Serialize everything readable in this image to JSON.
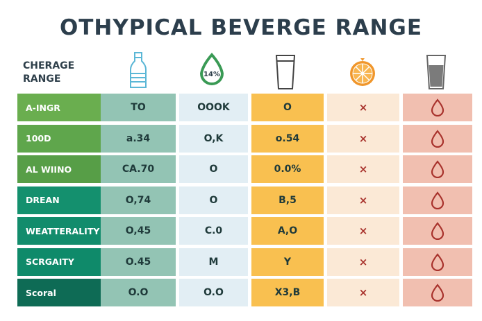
{
  "title": "OTHYPICAL BEVERGE RANGE",
  "header": {
    "label_line1": "CHERAGE",
    "label_line2": "RANGE",
    "icons": [
      "water-bottle-icon",
      "percent-drop-icon",
      "empty-glass-icon",
      "orange-slice-icon",
      "filled-glass-icon"
    ],
    "drop_text": "14%"
  },
  "rows": [
    {
      "label": "A-INGR",
      "c1": "TO",
      "c2": "OOOK",
      "c3": "O",
      "c4": "×",
      "color": "#6aae4f"
    },
    {
      "label": "100D",
      "c1": "a.34",
      "c2": "O,K",
      "c3": "o.54",
      "c4": "×",
      "color": "#5fa64c"
    },
    {
      "label": "AL WIINO",
      "c1": "CA.70",
      "c2": "O",
      "c3": "0.0%",
      "c4": "×",
      "color": "#579e47"
    },
    {
      "label": "DREAN",
      "c1": "O,74",
      "c2": "O",
      "c3": "B,5",
      "c4": "×",
      "color": "#14906e"
    },
    {
      "label": "WEATTERALITY",
      "c1": "O,45",
      "c2": "C.0",
      "c3": "A,O",
      "c4": "×",
      "color": "#128c6c"
    },
    {
      "label": "SCRGAITY",
      "c1": "O.45",
      "c2": "M",
      "c3": "Y",
      "c4": "×",
      "color": "#0f8a6a"
    },
    {
      "label": "Scoral",
      "c1": "O.O",
      "c2": "O.O",
      "c3": "X3,B",
      "c4": "×",
      "color": "#0e6b55"
    }
  ]
}
